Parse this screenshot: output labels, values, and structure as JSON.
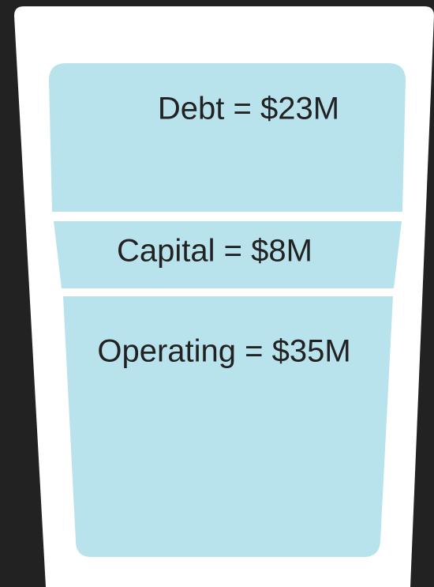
{
  "segments": [
    {
      "label": "Debt = $23M"
    },
    {
      "label": "Capital = $8M"
    },
    {
      "label": "Operating = $35M"
    }
  ]
}
